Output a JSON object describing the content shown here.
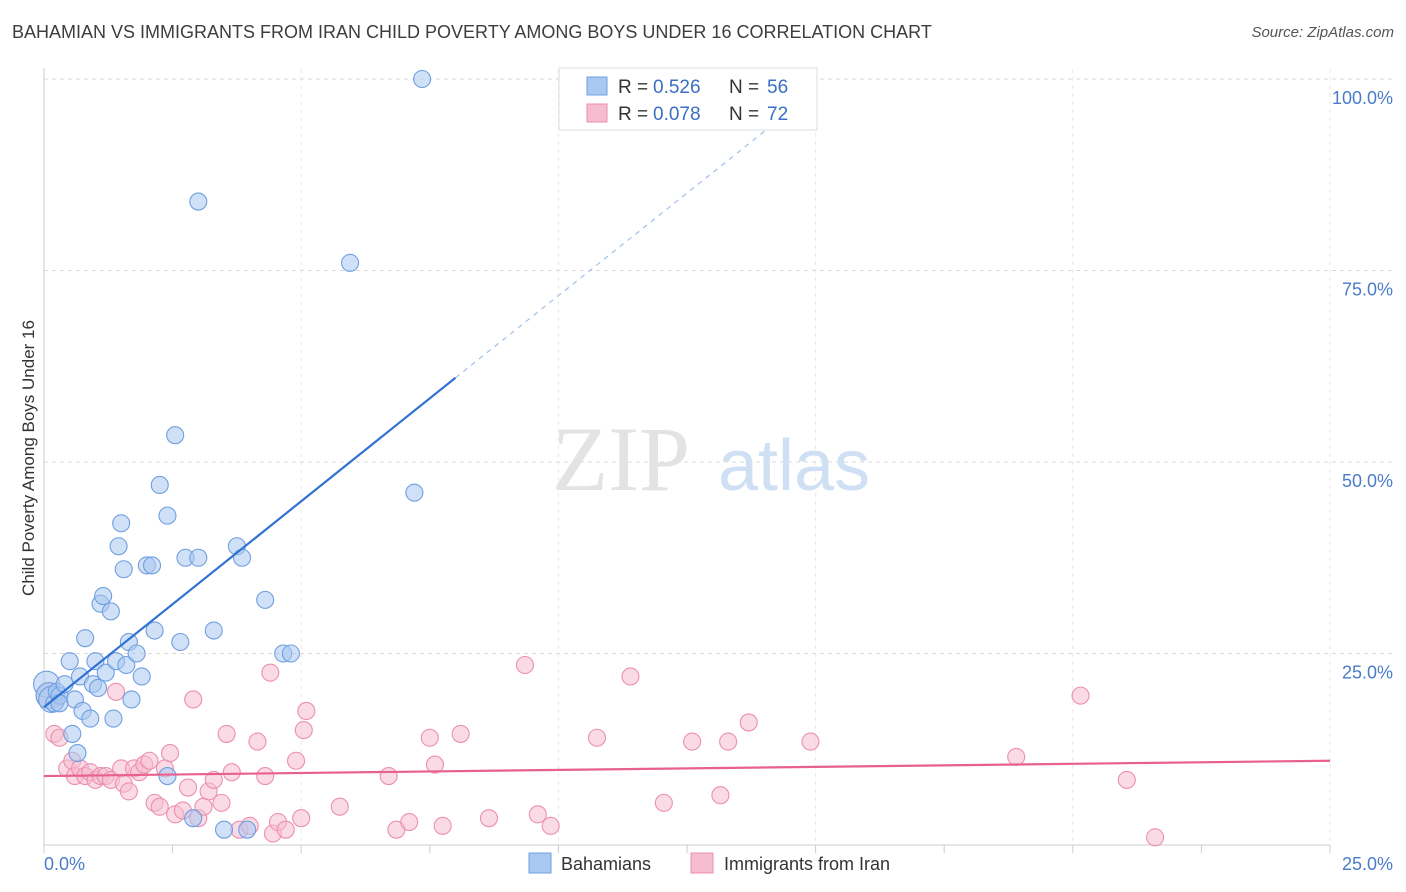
{
  "title": "BAHAMIAN VS IMMIGRANTS FROM IRAN CHILD POVERTY AMONG BOYS UNDER 16 CORRELATION CHART",
  "source": "Source: ZipAtlas.com",
  "watermark": {
    "zip": "ZIP",
    "atlas": "atlas"
  },
  "colors": {
    "blue_fill": "#a9c8f0",
    "blue_stroke": "#6f9fe0",
    "blue_line": "#2f72d4",
    "pink_fill": "#f6bdd0",
    "pink_stroke": "#ec8fb0",
    "pink_line": "#e8608e",
    "grid": "#d9d9d9",
    "axis_text": "#4a7cc7"
  },
  "legend_top": {
    "rows": [
      {
        "r_label": "R =",
        "r_value": "0.526",
        "n_label": "N =",
        "n_value": "56"
      },
      {
        "r_label": "R =",
        "r_value": "0.078",
        "n_label": "N =",
        "n_value": "72"
      }
    ]
  },
  "legend_bottom": [
    "Bahamians",
    "Immigrants from Iran"
  ],
  "chart_data": {
    "type": "scatter",
    "ylabel": "Child Poverty Among Boys Under 16",
    "xlabel": "",
    "xlim": [
      0,
      25
    ],
    "ylim": [
      0,
      100
    ],
    "y_ticks": [
      "100.0%",
      "75.0%",
      "50.0%",
      "25.0%"
    ],
    "y_tick_values": [
      100,
      75,
      50,
      25
    ],
    "x_tick_labels": [
      "0.0%",
      "25.0%"
    ],
    "x_tick_values": [
      0,
      25
    ],
    "grid": true,
    "legend_position": "top-center",
    "series": [
      {
        "name": "Bahamians",
        "color": "blue",
        "trend": {
          "x": [
            0.0,
            8.0
          ],
          "y": [
            18.0,
            61.0
          ],
          "dashed_to": [
            15.0,
            98.5
          ]
        },
        "points": [
          [
            0.05,
            21.0
          ],
          [
            0.1,
            19.5
          ],
          [
            0.15,
            19.0
          ],
          [
            0.2,
            18.5
          ],
          [
            0.25,
            20.0
          ],
          [
            0.3,
            19.5
          ],
          [
            0.4,
            21.0
          ],
          [
            0.5,
            24.0
          ],
          [
            0.55,
            14.5
          ],
          [
            0.6,
            19.0
          ],
          [
            0.65,
            12.0
          ],
          [
            0.7,
            22.0
          ],
          [
            0.75,
            17.5
          ],
          [
            0.8,
            27.0
          ],
          [
            0.9,
            16.5
          ],
          [
            0.95,
            21.0
          ],
          [
            1.0,
            24.0
          ],
          [
            1.05,
            20.5
          ],
          [
            1.1,
            31.5
          ],
          [
            1.15,
            32.5
          ],
          [
            1.2,
            22.5
          ],
          [
            1.3,
            30.5
          ],
          [
            1.35,
            16.5
          ],
          [
            1.4,
            24.0
          ],
          [
            1.45,
            39.0
          ],
          [
            1.5,
            42.0
          ],
          [
            1.55,
            36.0
          ],
          [
            1.6,
            23.5
          ],
          [
            1.65,
            26.5
          ],
          [
            1.7,
            19.0
          ],
          [
            1.8,
            25.0
          ],
          [
            1.9,
            22.0
          ],
          [
            2.0,
            36.5
          ],
          [
            2.1,
            36.5
          ],
          [
            2.15,
            28.0
          ],
          [
            2.25,
            47.0
          ],
          [
            2.4,
            43.0
          ],
          [
            2.4,
            9.0
          ],
          [
            2.55,
            53.5
          ],
          [
            2.65,
            26.5
          ],
          [
            2.75,
            37.5
          ],
          [
            3.0,
            37.5
          ],
          [
            3.0,
            84.0
          ],
          [
            3.3,
            28.0
          ],
          [
            3.5,
            2.0
          ],
          [
            3.75,
            39.0
          ],
          [
            3.85,
            37.5
          ],
          [
            3.95,
            2.0
          ],
          [
            4.3,
            32.0
          ],
          [
            4.65,
            25.0
          ],
          [
            4.8,
            25.0
          ],
          [
            5.95,
            76.0
          ],
          [
            7.2,
            46.0
          ],
          [
            7.35,
            100.0
          ],
          [
            0.3,
            18.5
          ],
          [
            2.9,
            3.5
          ]
        ]
      },
      {
        "name": "Immigrants from Iran",
        "color": "pink",
        "trend": {
          "x": [
            0.0,
            25.0
          ],
          "y": [
            9.0,
            11.0
          ]
        },
        "points": [
          [
            0.1,
            19.5
          ],
          [
            0.2,
            14.5
          ],
          [
            0.3,
            14.0
          ],
          [
            0.45,
            10.0
          ],
          [
            0.55,
            11.0
          ],
          [
            0.6,
            9.0
          ],
          [
            0.7,
            10.0
          ],
          [
            0.8,
            9.0
          ],
          [
            0.9,
            9.5
          ],
          [
            1.0,
            8.5
          ],
          [
            1.1,
            9.0
          ],
          [
            1.2,
            9.0
          ],
          [
            1.3,
            8.5
          ],
          [
            1.4,
            20.0
          ],
          [
            1.5,
            10.0
          ],
          [
            1.55,
            8.0
          ],
          [
            1.65,
            7.0
          ],
          [
            1.75,
            10.0
          ],
          [
            1.85,
            9.5
          ],
          [
            1.95,
            10.5
          ],
          [
            2.05,
            11.0
          ],
          [
            2.15,
            5.5
          ],
          [
            2.25,
            5.0
          ],
          [
            2.35,
            10.0
          ],
          [
            2.45,
            12.0
          ],
          [
            2.55,
            4.0
          ],
          [
            2.7,
            4.5
          ],
          [
            2.8,
            7.5
          ],
          [
            2.9,
            19.0
          ],
          [
            3.0,
            3.5
          ],
          [
            3.1,
            5.0
          ],
          [
            3.2,
            7.0
          ],
          [
            3.3,
            8.5
          ],
          [
            3.45,
            5.5
          ],
          [
            3.55,
            14.5
          ],
          [
            3.65,
            9.5
          ],
          [
            3.8,
            2.0
          ],
          [
            4.0,
            2.5
          ],
          [
            4.15,
            13.5
          ],
          [
            4.3,
            9.0
          ],
          [
            4.45,
            1.5
          ],
          [
            4.55,
            3.0
          ],
          [
            4.7,
            2.0
          ],
          [
            4.9,
            11.0
          ],
          [
            5.05,
            15.0
          ],
          [
            5.1,
            17.5
          ],
          [
            5.0,
            3.5
          ],
          [
            5.75,
            5.0
          ],
          [
            6.7,
            9.0
          ],
          [
            6.85,
            2.0
          ],
          [
            7.1,
            3.0
          ],
          [
            7.5,
            14.0
          ],
          [
            7.6,
            10.5
          ],
          [
            7.75,
            2.5
          ],
          [
            8.1,
            14.5
          ],
          [
            8.65,
            3.5
          ],
          [
            9.35,
            23.5
          ],
          [
            9.6,
            4.0
          ],
          [
            9.85,
            2.5
          ],
          [
            10.75,
            14.0
          ],
          [
            11.4,
            22.0
          ],
          [
            12.05,
            5.5
          ],
          [
            12.6,
            13.5
          ],
          [
            13.15,
            6.5
          ],
          [
            13.3,
            13.5
          ],
          [
            13.7,
            16.0
          ],
          [
            14.9,
            13.5
          ],
          [
            18.9,
            11.5
          ],
          [
            20.15,
            19.5
          ],
          [
            21.05,
            8.5
          ],
          [
            21.6,
            1.0
          ],
          [
            4.4,
            22.5
          ]
        ]
      }
    ]
  }
}
